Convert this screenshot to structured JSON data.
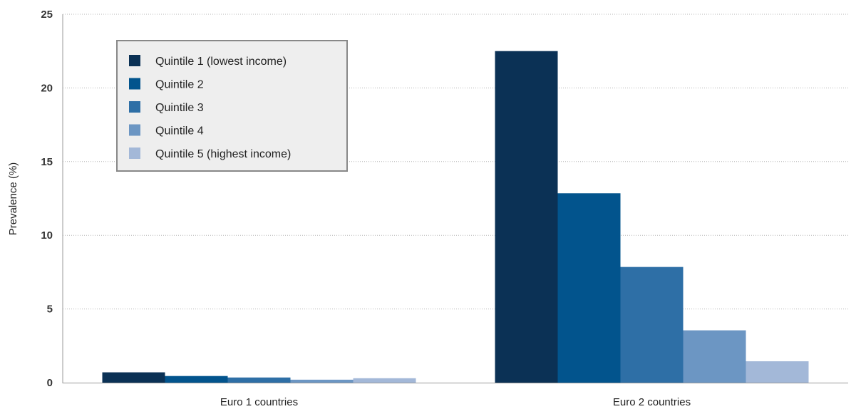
{
  "chart_data": {
    "type": "bar",
    "title": "",
    "xlabel": "",
    "ylabel": "Prevalence (%)",
    "categories": [
      "Euro 1 countries",
      "Euro 2 countries"
    ],
    "series": [
      {
        "name": "Quintile 1 (lowest income)",
        "color": "#0b3155",
        "values": [
          0.7,
          22.5
        ]
      },
      {
        "name": "Quintile 2",
        "color": "#02548d",
        "values": [
          0.45,
          12.85
        ]
      },
      {
        "name": "Quintile 3",
        "color": "#2e6fa6",
        "values": [
          0.35,
          7.85
        ]
      },
      {
        "name": "Quintile 4",
        "color": "#6c96c3",
        "values": [
          0.2,
          3.55
        ]
      },
      {
        "name": "Quintile 5 (highest income)",
        "color": "#a3b8d8",
        "values": [
          0.3,
          1.45
        ]
      }
    ],
    "ylim": [
      0,
      25
    ],
    "yticks": [
      0,
      5,
      10,
      15,
      20,
      25
    ],
    "grid": true,
    "legend_position": "top-left"
  }
}
